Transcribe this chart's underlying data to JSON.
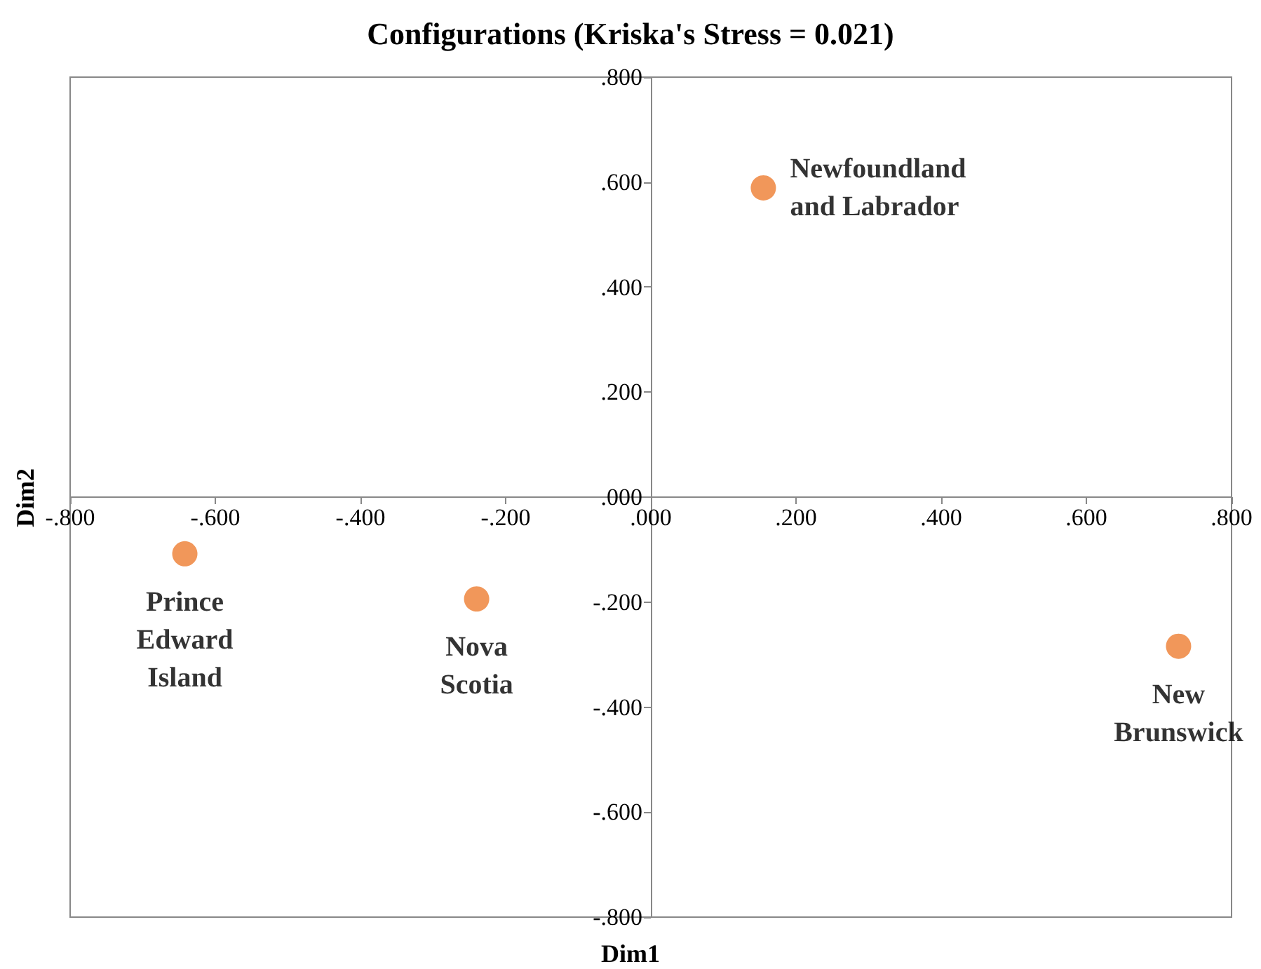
{
  "chart_data": {
    "type": "scatter",
    "title": "Configurations (Kriska's Stress = 0.021)",
    "xlabel": "Dim1",
    "ylabel": "Dim2",
    "x": [
      0.155,
      -0.642,
      -0.24,
      0.727
    ],
    "values": [
      0.589,
      -0.108,
      -0.194,
      -0.284
    ],
    "color": "#ed7d31",
    "marker": "circle",
    "annotations": [
      {
        "text": "Newfoundland\nand Labrador",
        "x": 0.155,
        "y": 0.589
      },
      {
        "text": "Prince\nEdward\nIsland",
        "x": -0.642,
        "y": -0.108
      },
      {
        "text": "Nova\nScotia",
        "x": -0.24,
        "y": -0.194
      },
      {
        "text": "New\nBrunswick",
        "x": 0.727,
        "y": -0.284
      }
    ],
    "xlim": [
      -0.8,
      0.8
    ],
    "xticks": [
      {
        "value": -0.8,
        "label": "-.800"
      },
      {
        "value": -0.6,
        "label": "-.600"
      },
      {
        "value": -0.4,
        "label": "-.400"
      },
      {
        "value": -0.2,
        "label": "-.200"
      },
      {
        "value": 0,
        "label": ".000"
      },
      {
        "value": 0.2,
        "label": ".200"
      },
      {
        "value": 0.4,
        "label": ".400"
      },
      {
        "value": 0.6,
        "label": ".600"
      },
      {
        "value": 0.8,
        "label": ".800"
      }
    ],
    "ylim": [
      -0.8,
      0.8
    ],
    "yticks": [
      {
        "value": -0.8,
        "label": "-.800"
      },
      {
        "value": -0.6,
        "label": "-.600"
      },
      {
        "value": -0.4,
        "label": "-.400"
      },
      {
        "value": -0.2,
        "label": "-.200"
      },
      {
        "value": 0,
        "label": ".000"
      },
      {
        "value": 0.2,
        "label": ".200"
      },
      {
        "value": 0.4,
        "label": ".400"
      },
      {
        "value": 0.6,
        "label": ".600"
      },
      {
        "value": 0.8,
        "label": ".800"
      }
    ]
  }
}
